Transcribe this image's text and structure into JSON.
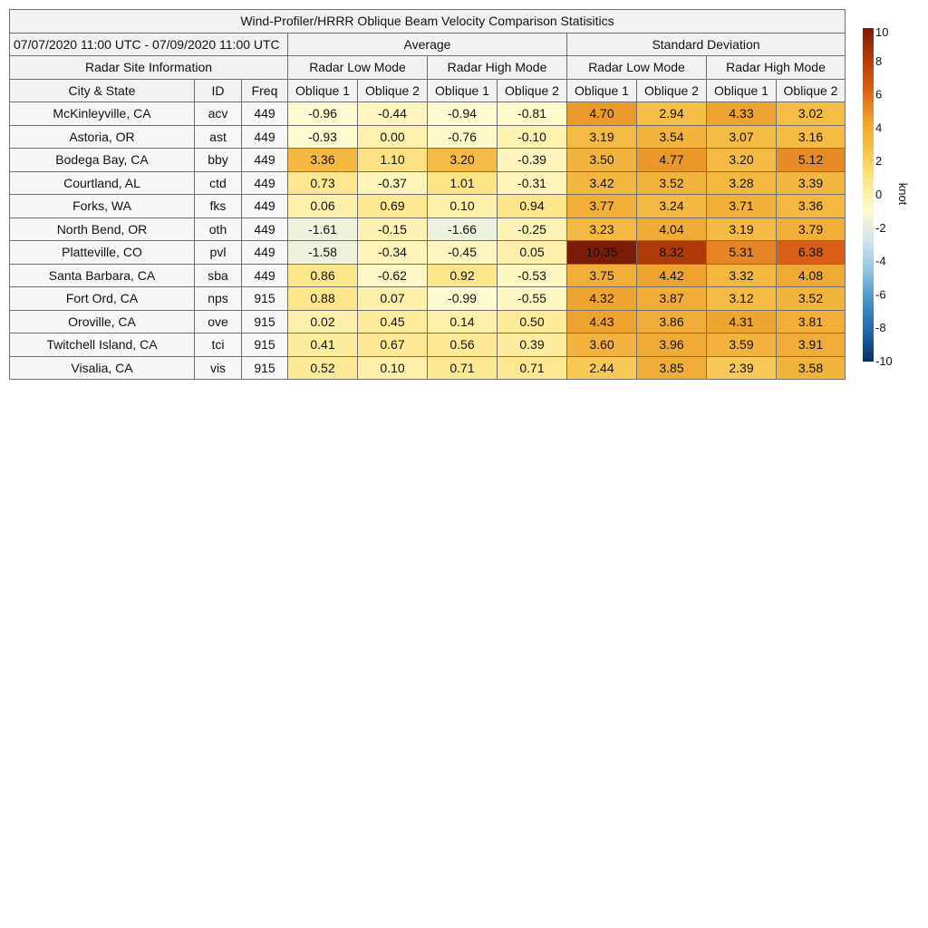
{
  "chart_data": {
    "type": "table",
    "title": "Wind-Profiler/HRRR Oblique Beam Velocity Comparison Statisitics",
    "period": "07/07/2020 11:00 UTC - 07/09/2020 11:00 UTC",
    "group_headers": {
      "average": "Average",
      "std": "Standard Deviation"
    },
    "site_info_label": "Radar Site Information",
    "mode_headers": [
      "Radar Low Mode",
      "Radar High Mode",
      "Radar Low Mode",
      "Radar High Mode"
    ],
    "columns": [
      "City & State",
      "ID",
      "Freq",
      "Oblique 1",
      "Oblique 2",
      "Oblique 1",
      "Oblique 2",
      "Oblique 1",
      "Oblique 2",
      "Oblique 1",
      "Oblique 2"
    ],
    "rows": [
      {
        "city": "McKinleyville, CA",
        "id": "acv",
        "freq": "449",
        "values": [
          "-0.96",
          "-0.44",
          "-0.94",
          "-0.81",
          "4.70",
          "2.94",
          "4.33",
          "3.02"
        ]
      },
      {
        "city": "Astoria, OR",
        "id": "ast",
        "freq": "449",
        "values": [
          "-0.93",
          "0.00",
          "-0.76",
          "-0.10",
          "3.19",
          "3.54",
          "3.07",
          "3.16"
        ]
      },
      {
        "city": "Bodega Bay, CA",
        "id": "bby",
        "freq": "449",
        "values": [
          "3.36",
          "1.10",
          "3.20",
          "-0.39",
          "3.50",
          "4.77",
          "3.20",
          "5.12"
        ]
      },
      {
        "city": "Courtland, AL",
        "id": "ctd",
        "freq": "449",
        "values": [
          "0.73",
          "-0.37",
          "1.01",
          "-0.31",
          "3.42",
          "3.52",
          "3.28",
          "3.39"
        ]
      },
      {
        "city": "Forks, WA",
        "id": "fks",
        "freq": "449",
        "values": [
          "0.06",
          "0.69",
          "0.10",
          "0.94",
          "3.77",
          "3.24",
          "3.71",
          "3.36"
        ]
      },
      {
        "city": "North Bend, OR",
        "id": "oth",
        "freq": "449",
        "values": [
          "-1.61",
          "-0.15",
          "-1.66",
          "-0.25",
          "3.23",
          "4.04",
          "3.19",
          "3.79"
        ]
      },
      {
        "city": "Platteville, CO",
        "id": "pvl",
        "freq": "449",
        "values": [
          "-1.58",
          "-0.34",
          "-0.45",
          "0.05",
          "10.35",
          "8.32",
          "5.31",
          "6.38"
        ]
      },
      {
        "city": "Santa Barbara, CA",
        "id": "sba",
        "freq": "449",
        "values": [
          "0.86",
          "-0.62",
          "0.92",
          "-0.53",
          "3.75",
          "4.42",
          "3.32",
          "4.08"
        ]
      },
      {
        "city": "Fort Ord, CA",
        "id": "nps",
        "freq": "915",
        "values": [
          "0.88",
          "0.07",
          "-0.99",
          "-0.55",
          "4.32",
          "3.87",
          "3.12",
          "3.52"
        ]
      },
      {
        "city": "Oroville, CA",
        "id": "ove",
        "freq": "915",
        "values": [
          "0.02",
          "0.45",
          "0.14",
          "0.50",
          "4.43",
          "3.86",
          "4.31",
          "3.81"
        ]
      },
      {
        "city": "Twitchell Island, CA",
        "id": "tci",
        "freq": "915",
        "values": [
          "0.41",
          "0.67",
          "0.56",
          "0.39",
          "3.60",
          "3.96",
          "3.59",
          "3.91"
        ]
      },
      {
        "city": "Visalia, CA",
        "id": "vis",
        "freq": "915",
        "values": [
          "0.52",
          "0.10",
          "0.71",
          "0.71",
          "2.44",
          "3.85",
          "2.39",
          "3.58"
        ]
      }
    ],
    "colorbar": {
      "label": "knot",
      "range": [
        -10,
        10
      ],
      "ticks": [
        "10",
        "8",
        "6",
        "4",
        "2",
        "0",
        "-2",
        "-4",
        "-6",
        "-8",
        "-10"
      ],
      "stops": [
        "#053061",
        "#2166ac",
        "#4393c3",
        "#92c5de",
        "#d1e5f0",
        "#fffbd0",
        "#fde68a",
        "#f7c34a",
        "#eda02e",
        "#d95f18",
        "#b23c0a",
        "#7b1c06"
      ]
    }
  }
}
